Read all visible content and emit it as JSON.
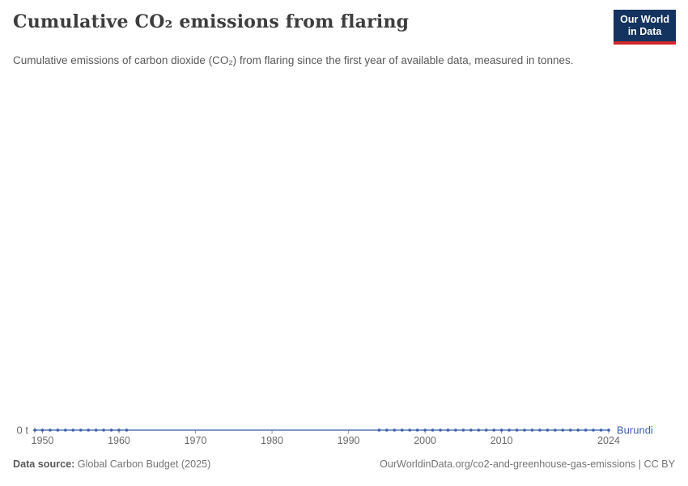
{
  "header": {
    "title": "Cumulative CO₂ emissions from flaring",
    "subtitle": "Cumulative emissions of carbon dioxide (CO₂) from flaring since the first year of available data, measured in tonnes.",
    "logo": {
      "line1": "Our World",
      "line2": "in Data",
      "bg_color": "#14335f",
      "accent_color": "#d2262e"
    }
  },
  "chart_data": {
    "type": "line",
    "title": "Cumulative CO₂ emissions from flaring",
    "unit": "t",
    "x_range": [
      1949,
      2024
    ],
    "x_ticks": [
      1950,
      1960,
      1970,
      1980,
      1990,
      2000,
      2010,
      2024
    ],
    "y_axis_label": "0 t",
    "grid": false,
    "legend_position": "right-of-line-end",
    "axis_tick_color": "#999999",
    "axis_label_color": "#6b6b6b",
    "series": [
      {
        "name": "Burundi",
        "color": "#3d5fa8",
        "constant_value": 0,
        "line_years": [
          1949,
          2024
        ],
        "marker_years": [
          1949,
          1950,
          1951,
          1952,
          1953,
          1954,
          1955,
          1956,
          1957,
          1958,
          1959,
          1960,
          1961,
          1994,
          1995,
          1996,
          1997,
          1998,
          1999,
          2000,
          2001,
          2002,
          2003,
          2004,
          2005,
          2006,
          2007,
          2008,
          2009,
          2010,
          2011,
          2012,
          2013,
          2014,
          2015,
          2016,
          2017,
          2018,
          2019,
          2020,
          2021,
          2022,
          2023,
          2024
        ],
        "values_note": "all data points equal 0 t"
      }
    ]
  },
  "footer": {
    "data_source_label": "Data source:",
    "data_source_value": "Global Carbon Budget (2025)",
    "credit": "OurWorldinData.org/co2-and-greenhouse-gas-emissions | CC BY"
  }
}
